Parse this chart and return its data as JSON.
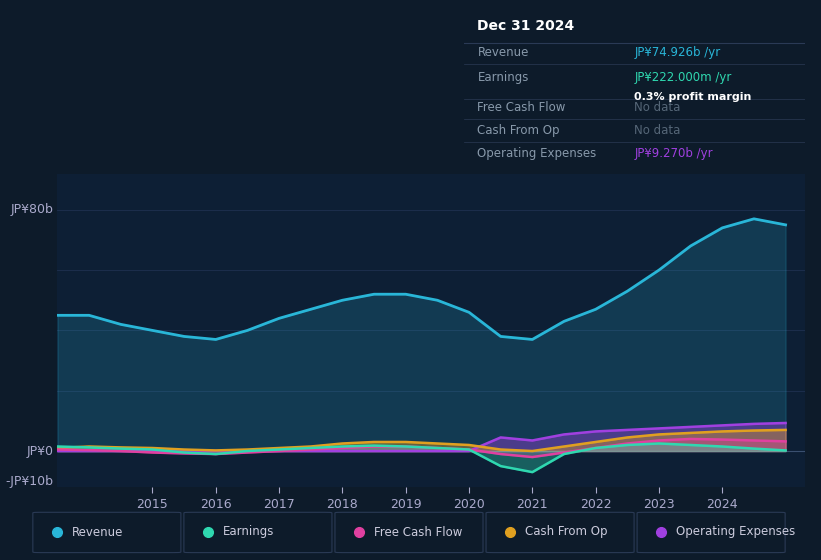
{
  "bg_color": "#0d1b2a",
  "panel_bg": "#0d1f35",
  "title": "Dec 31 2024",
  "ylabel_top": "JP¥80b",
  "ylabel_zero": "JP¥0",
  "ylabel_neg": "-JP¥10b",
  "ylim": [
    -12,
    92
  ],
  "xlim": [
    2013.5,
    2025.3
  ],
  "xticks": [
    2015,
    2016,
    2017,
    2018,
    2019,
    2020,
    2021,
    2022,
    2023,
    2024
  ],
  "colors": {
    "revenue": "#29b6d8",
    "earnings": "#2fd8b0",
    "free_cash_flow": "#e040a0",
    "cash_from_op": "#e0a020",
    "operating_expenses": "#a040e0"
  },
  "revenue": [
    [
      2013.5,
      45
    ],
    [
      2014.0,
      45
    ],
    [
      2014.5,
      42
    ],
    [
      2015.0,
      40
    ],
    [
      2015.5,
      38
    ],
    [
      2016.0,
      37
    ],
    [
      2016.5,
      40
    ],
    [
      2017.0,
      44
    ],
    [
      2017.5,
      47
    ],
    [
      2018.0,
      50
    ],
    [
      2018.5,
      52
    ],
    [
      2019.0,
      52
    ],
    [
      2019.5,
      50
    ],
    [
      2020.0,
      46
    ],
    [
      2020.5,
      38
    ],
    [
      2021.0,
      37
    ],
    [
      2021.5,
      43
    ],
    [
      2022.0,
      47
    ],
    [
      2022.5,
      53
    ],
    [
      2023.0,
      60
    ],
    [
      2023.5,
      68
    ],
    [
      2024.0,
      74
    ],
    [
      2024.5,
      77
    ],
    [
      2025.0,
      75
    ]
  ],
  "earnings": [
    [
      2013.5,
      1.5
    ],
    [
      2014.0,
      1.2
    ],
    [
      2014.5,
      0.8
    ],
    [
      2015.0,
      0.5
    ],
    [
      2015.5,
      -0.5
    ],
    [
      2016.0,
      -1.0
    ],
    [
      2016.5,
      0.0
    ],
    [
      2017.0,
      0.5
    ],
    [
      2017.5,
      1.0
    ],
    [
      2018.0,
      1.5
    ],
    [
      2018.5,
      1.8
    ],
    [
      2019.0,
      1.5
    ],
    [
      2019.5,
      1.0
    ],
    [
      2020.0,
      0.5
    ],
    [
      2020.5,
      -5
    ],
    [
      2021.0,
      -7
    ],
    [
      2021.5,
      -1
    ],
    [
      2022.0,
      1.0
    ],
    [
      2022.5,
      2.0
    ],
    [
      2023.0,
      2.5
    ],
    [
      2023.5,
      2.0
    ],
    [
      2024.0,
      1.5
    ],
    [
      2024.5,
      0.8
    ],
    [
      2025.0,
      0.2
    ]
  ],
  "free_cash_flow": [
    [
      2013.5,
      0.5
    ],
    [
      2014.0,
      0.3
    ],
    [
      2014.5,
      0.0
    ],
    [
      2015.0,
      -0.5
    ],
    [
      2015.5,
      -0.8
    ],
    [
      2016.0,
      -1.0
    ],
    [
      2016.5,
      -0.5
    ],
    [
      2017.0,
      0.0
    ],
    [
      2017.5,
      0.5
    ],
    [
      2018.0,
      1.0
    ],
    [
      2018.5,
      1.5
    ],
    [
      2019.0,
      1.5
    ],
    [
      2019.5,
      1.0
    ],
    [
      2020.0,
      0.5
    ],
    [
      2020.5,
      -1.0
    ],
    [
      2021.0,
      -2.0
    ],
    [
      2021.5,
      -0.5
    ],
    [
      2022.0,
      1.0
    ],
    [
      2022.5,
      2.5
    ],
    [
      2023.0,
      3.5
    ],
    [
      2023.5,
      4.0
    ],
    [
      2024.0,
      3.8
    ],
    [
      2024.5,
      3.5
    ],
    [
      2025.0,
      3.2
    ]
  ],
  "cash_from_op": [
    [
      2013.5,
      1.0
    ],
    [
      2014.0,
      1.5
    ],
    [
      2014.5,
      1.2
    ],
    [
      2015.0,
      1.0
    ],
    [
      2015.5,
      0.5
    ],
    [
      2016.0,
      0.2
    ],
    [
      2016.5,
      0.5
    ],
    [
      2017.0,
      1.0
    ],
    [
      2017.5,
      1.5
    ],
    [
      2018.0,
      2.5
    ],
    [
      2018.5,
      3.0
    ],
    [
      2019.0,
      3.0
    ],
    [
      2019.5,
      2.5
    ],
    [
      2020.0,
      2.0
    ],
    [
      2020.5,
      0.5
    ],
    [
      2021.0,
      0.0
    ],
    [
      2021.5,
      1.5
    ],
    [
      2022.0,
      3.0
    ],
    [
      2022.5,
      4.5
    ],
    [
      2023.0,
      5.5
    ],
    [
      2023.5,
      6.0
    ],
    [
      2024.0,
      6.5
    ],
    [
      2024.5,
      6.8
    ],
    [
      2025.0,
      7.0
    ]
  ],
  "operating_expenses": [
    [
      2013.5,
      0.0
    ],
    [
      2014.0,
      0.0
    ],
    [
      2014.5,
      0.0
    ],
    [
      2015.0,
      0.0
    ],
    [
      2015.5,
      0.0
    ],
    [
      2016.0,
      0.0
    ],
    [
      2016.5,
      0.0
    ],
    [
      2017.0,
      0.0
    ],
    [
      2017.5,
      0.0
    ],
    [
      2018.0,
      0.0
    ],
    [
      2018.5,
      0.0
    ],
    [
      2019.0,
      0.0
    ],
    [
      2019.5,
      0.0
    ],
    [
      2020.0,
      0.0
    ],
    [
      2020.5,
      4.5
    ],
    [
      2021.0,
      3.5
    ],
    [
      2021.5,
      5.5
    ],
    [
      2022.0,
      6.5
    ],
    [
      2022.5,
      7.0
    ],
    [
      2023.0,
      7.5
    ],
    [
      2023.5,
      8.0
    ],
    [
      2024.0,
      8.5
    ],
    [
      2024.5,
      9.0
    ],
    [
      2025.0,
      9.3
    ]
  ],
  "info_box": {
    "title": "Dec 31 2024",
    "rows": [
      {
        "label": "Revenue",
        "value": "JP¥74.926b /yr",
        "value_color": "#29b6d8",
        "extra": null
      },
      {
        "label": "Earnings",
        "value": "JP¥222.000m /yr",
        "value_color": "#2fd8b0",
        "extra": "0.3% profit margin"
      },
      {
        "label": "Free Cash Flow",
        "value": "No data",
        "value_color": "#556677",
        "extra": null
      },
      {
        "label": "Cash From Op",
        "value": "No data",
        "value_color": "#556677",
        "extra": null
      },
      {
        "label": "Operating Expenses",
        "value": "JP¥9.270b /yr",
        "value_color": "#a040e0",
        "extra": null
      }
    ]
  },
  "legend": [
    {
      "label": "Revenue",
      "color": "#29b6d8"
    },
    {
      "label": "Earnings",
      "color": "#2fd8b0"
    },
    {
      "label": "Free Cash Flow",
      "color": "#e040a0"
    },
    {
      "label": "Cash From Op",
      "color": "#e0a020"
    },
    {
      "label": "Operating Expenses",
      "color": "#a040e0"
    }
  ]
}
